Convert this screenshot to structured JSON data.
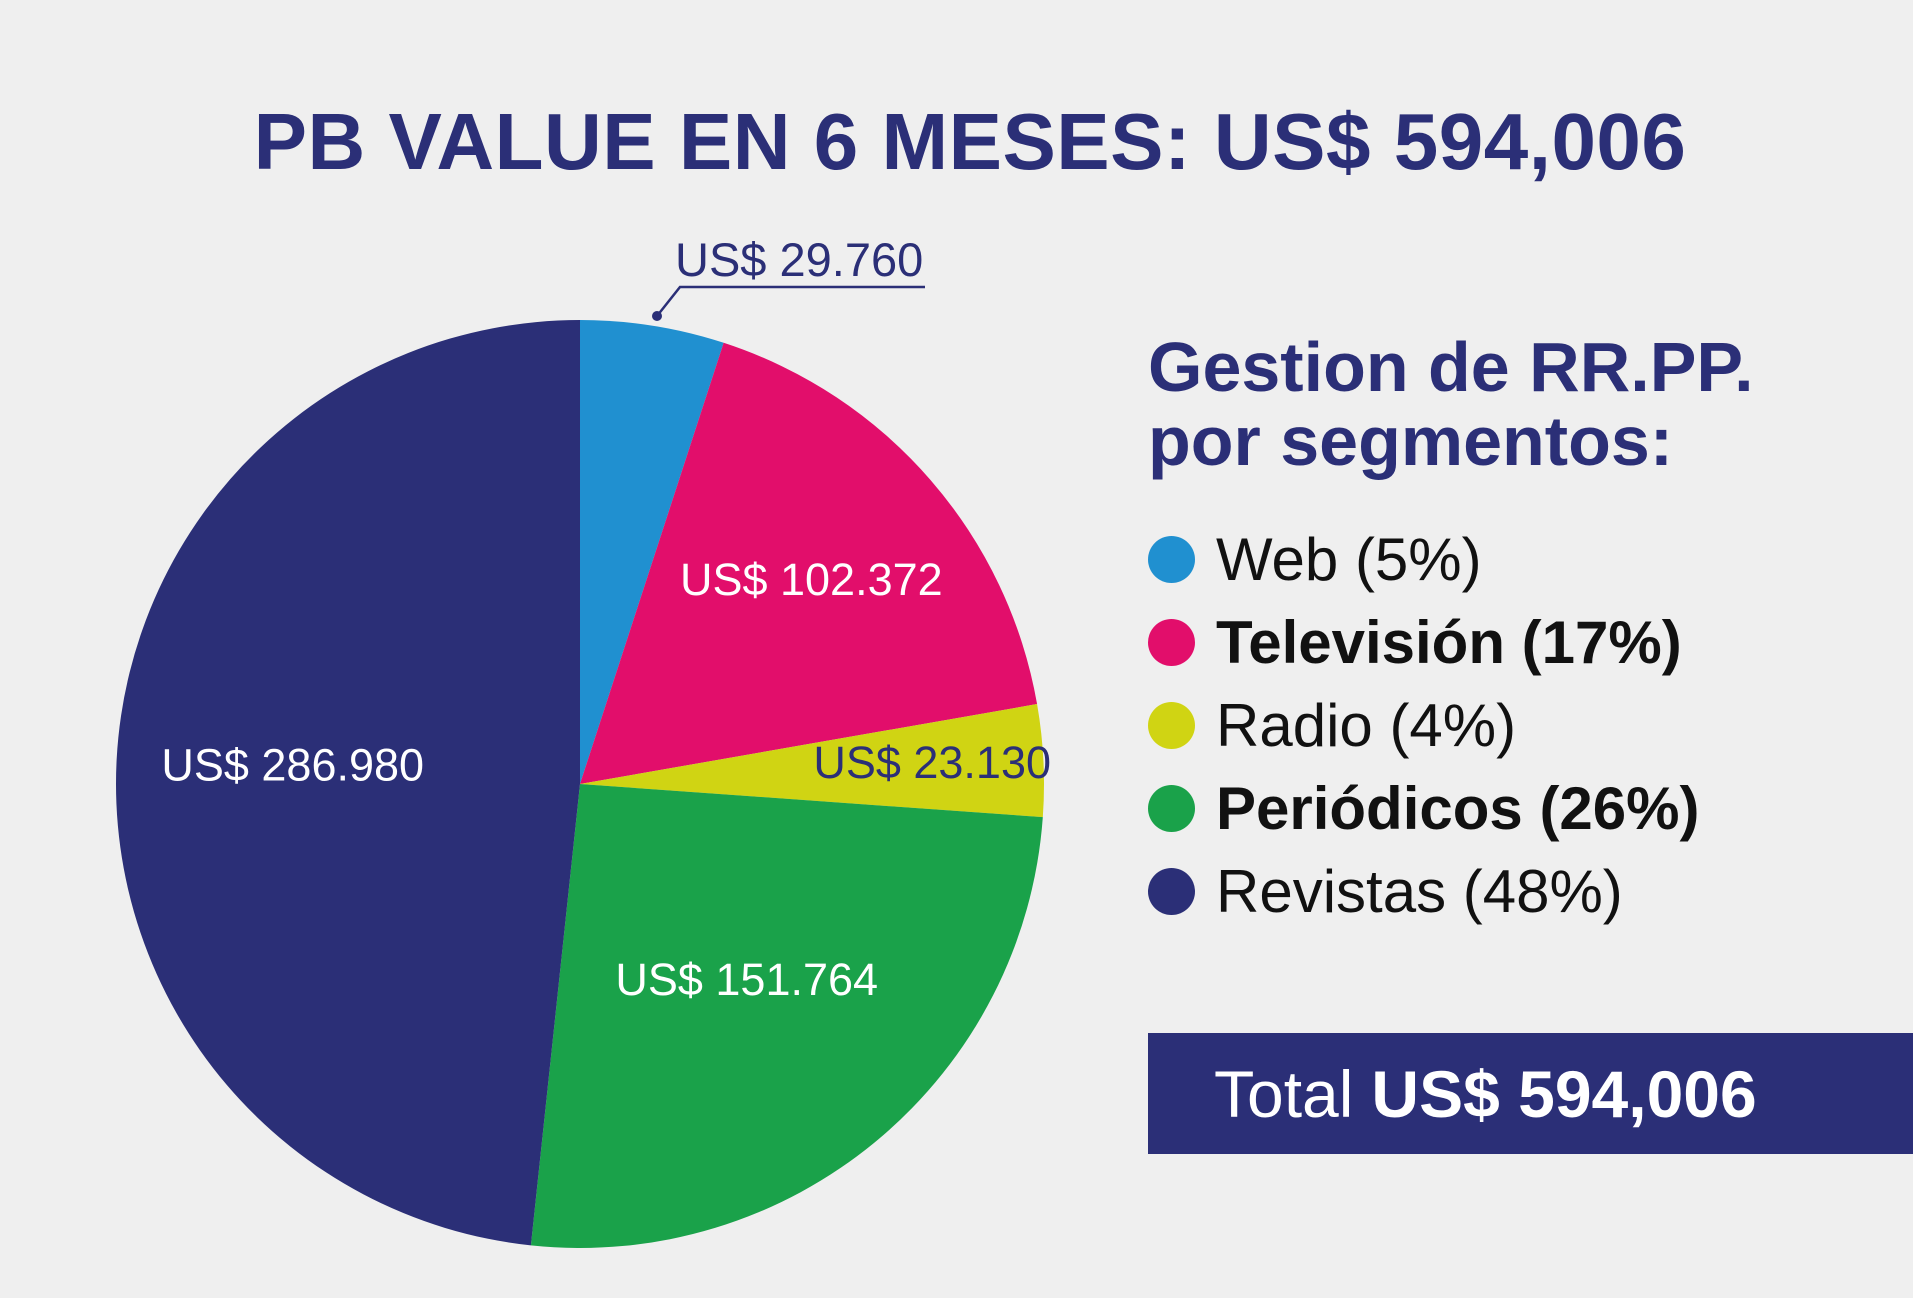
{
  "title": "PB VALUE EN 6 MESES: US$ 594,006",
  "legend": {
    "heading_line1": "Gestion de RR.PP.",
    "heading_line2": "por segmentos:",
    "items": [
      {
        "label": "Web (5%)",
        "color": "#2090d0",
        "bold": false
      },
      {
        "label": "Televisión (17%)",
        "color": "#e20e6b",
        "bold": true
      },
      {
        "label": "Radio (4%)",
        "color": "#d0d413",
        "bold": false
      },
      {
        "label": "Periódicos (26%)",
        "color": "#1aa24a",
        "bold": true
      },
      {
        "label": "Revistas (48%)",
        "color": "#2b2f77",
        "bold": false
      }
    ]
  },
  "total": {
    "label": "Total",
    "value": "US$ 594,006"
  },
  "chart_data": {
    "type": "pie",
    "title": "PB VALUE EN 6 MESES: US$ 594,006",
    "categories": [
      "Web",
      "Televisión",
      "Radio",
      "Periódicos",
      "Revistas"
    ],
    "values": [
      29760,
      102372,
      23130,
      151764,
      286980
    ],
    "value_labels": [
      "US$ 29.760",
      "US$ 102.372",
      "US$ 23.130",
      "US$ 151.764",
      "US$ 286.980"
    ],
    "percentages": [
      5,
      17,
      4,
      26,
      48
    ],
    "colors": [
      "#2090d0",
      "#e20e6b",
      "#d0d413",
      "#1aa24a",
      "#2b2f77"
    ],
    "label_colors": [
      "#2b2f77",
      "#ffffff",
      "#2b2f77",
      "#ffffff",
      "#ffffff"
    ],
    "legend_position": "right"
  }
}
